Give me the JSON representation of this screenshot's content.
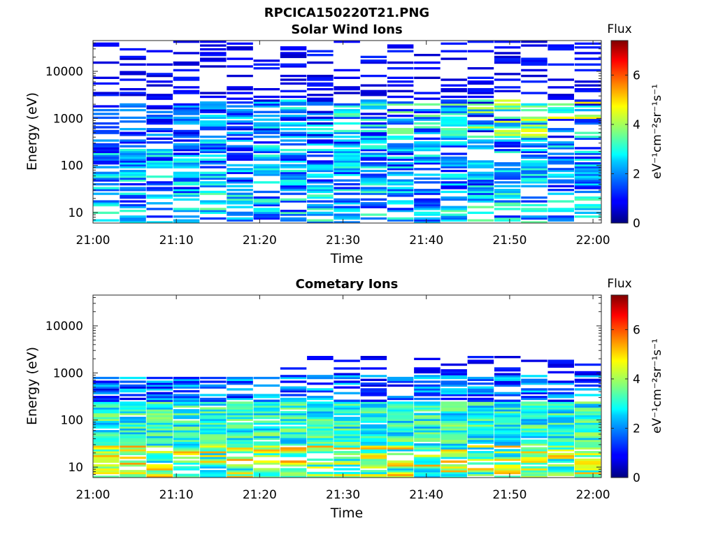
{
  "figure": {
    "title": "RPCICA150220T21.PNG"
  },
  "colorbar": {
    "title": "Flux",
    "label": "eV⁻¹cm⁻²sr⁻¹s⁻¹",
    "ticks": [
      "0",
      "2",
      "4",
      "6"
    ],
    "range": [
      0,
      7.4
    ],
    "colormap": "jet"
  },
  "chart_data": [
    {
      "type": "heatmap",
      "title": "Solar Wind Ions",
      "xlabel": "Time",
      "ylabel": "Energy (eV)",
      "yscale": "log",
      "ylim": [
        6,
        45000
      ],
      "xlim": [
        "21:00",
        "22:01"
      ],
      "x_ticks": [
        "21:00",
        "21:10",
        "21:20",
        "21:30",
        "21:40",
        "21:50",
        "22:00"
      ],
      "y_ticks": [
        "10",
        "100",
        "1000",
        "10000"
      ],
      "columns": 19,
      "pattern": "solar-wind",
      "description_values": {
        "peak_flux_low_energy_band": 3.5,
        "peak_flux_keV_band_after_21_30": 4.6
      }
    },
    {
      "type": "heatmap",
      "title": "Cometary Ions",
      "xlabel": "Time",
      "ylabel": "Energy (eV)",
      "yscale": "log",
      "ylim": [
        6,
        45000
      ],
      "xlim": [
        "21:00",
        "22:01"
      ],
      "x_ticks": [
        "21:00",
        "21:10",
        "21:20",
        "21:30",
        "21:40",
        "21:50",
        "22:00"
      ],
      "y_ticks": [
        "10",
        "100",
        "1000",
        "10000"
      ],
      "columns": 19,
      "pattern": "cometary",
      "description_values": {
        "peak_flux_below_30eV": 5.3,
        "typical_flux_20_200eV": 3.5
      }
    }
  ]
}
